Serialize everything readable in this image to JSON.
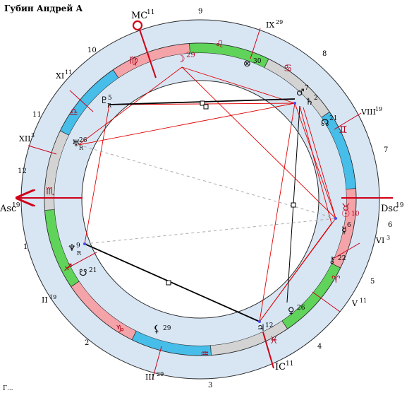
{
  "title": "Губин Андрей А",
  "footer_partial": "Г...",
  "colors": {
    "fire": "#f4a3a8",
    "earth": "#5fd35a",
    "air": "#d3d3d3",
    "water": "#47bde9",
    "ring_outer": "#d8e6f4",
    "aspect_red": "#e00000",
    "aspect_black": "#000000",
    "accent_red": "#d00018"
  },
  "angles": {
    "mc": {
      "label": "MC",
      "deg": "11"
    },
    "ic": {
      "label": "IC",
      "deg": "11"
    },
    "asc": {
      "label": "Asc",
      "deg": "19"
    },
    "dsc": {
      "label": "Dsc",
      "deg": "19"
    }
  },
  "house_numbers": [
    "1",
    "2",
    "3",
    "4",
    "5",
    "6",
    "7",
    "8",
    "9",
    "10",
    "11",
    "12"
  ],
  "house_cusps": [
    {
      "label": "II",
      "deg": "19"
    },
    {
      "label": "III",
      "deg": "29"
    },
    {
      "label": "VI",
      "deg": "3"
    },
    {
      "label": "V",
      "deg": "11"
    },
    {
      "label": "VIII",
      "deg": "19"
    },
    {
      "label": "IX",
      "deg": "29"
    },
    {
      "label": "XI",
      "deg": "11"
    },
    {
      "label": "XII",
      "deg": "3"
    }
  ],
  "signs": [
    {
      "name": "aries-icon",
      "glyph": "♈"
    },
    {
      "name": "taurus-icon",
      "glyph": "♉"
    },
    {
      "name": "gemini-icon",
      "glyph": "♊"
    },
    {
      "name": "cancer-icon",
      "glyph": "♋"
    },
    {
      "name": "leo-icon",
      "glyph": "♌"
    },
    {
      "name": "virgo-icon",
      "glyph": "♍"
    },
    {
      "name": "libra-icon",
      "glyph": "♎"
    },
    {
      "name": "scorpio-icon",
      "glyph": "♏"
    },
    {
      "name": "sagittarius-icon",
      "glyph": "♐"
    },
    {
      "name": "capricorn-icon",
      "glyph": "♑"
    },
    {
      "name": "aquarius-icon",
      "glyph": "♒"
    },
    {
      "name": "pisces-icon",
      "glyph": "♓"
    }
  ],
  "planets": [
    {
      "name": "moon-icon",
      "glyph": "☽",
      "deg": "29",
      "retro": ""
    },
    {
      "name": "part-of-fortune-icon",
      "glyph": "⊗",
      "deg": "30",
      "retro": ""
    },
    {
      "name": "mars-icon",
      "glyph": "♂",
      "deg": "7",
      "retro": ""
    },
    {
      "name": "saturn-icon",
      "glyph": "♄",
      "deg": "2",
      "retro": ""
    },
    {
      "name": "north-node-icon",
      "glyph": "☊",
      "deg": "21",
      "retro": ""
    },
    {
      "name": "sun-icon",
      "glyph": "☉",
      "deg": "10",
      "retro": ""
    },
    {
      "name": "mercury-icon",
      "glyph": "☿",
      "deg": "6",
      "retro": ""
    },
    {
      "name": "chiron-icon",
      "glyph": "⚷",
      "deg": "22",
      "retro": ""
    },
    {
      "name": "venus-icon",
      "glyph": "♀",
      "deg": "26",
      "retro": ""
    },
    {
      "name": "jupiter-icon",
      "glyph": "♃",
      "deg": "12",
      "retro": ""
    },
    {
      "name": "lilith-icon",
      "glyph": "⚸",
      "deg": "29",
      "retro": ""
    },
    {
      "name": "neptune-icon",
      "glyph": "♆",
      "deg": "9",
      "retro": "R"
    },
    {
      "name": "south-node-icon",
      "glyph": "☋",
      "deg": "21",
      "retro": ""
    },
    {
      "name": "uranus-icon",
      "glyph": "♅",
      "deg": "26",
      "retro": "R"
    },
    {
      "name": "pluto-icon",
      "glyph": "♇",
      "deg": "5",
      "retro": "R"
    }
  ]
}
